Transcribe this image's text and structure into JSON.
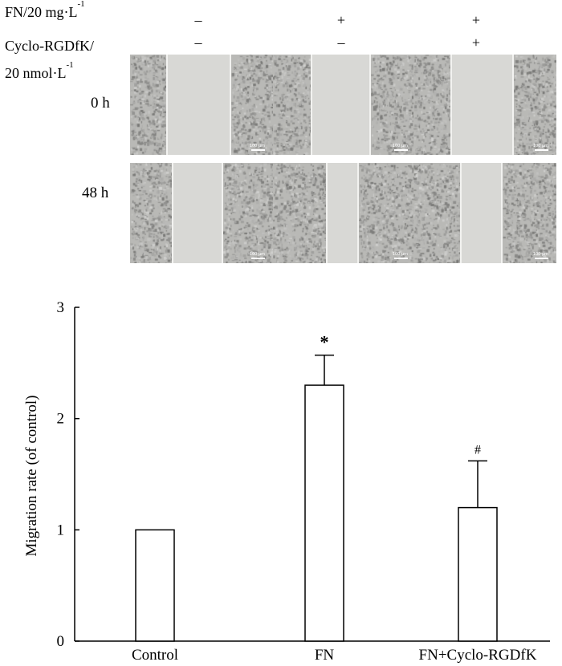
{
  "header": {
    "fn_label": "FN/20 mg·L",
    "fn_exp": "-1",
    "rgd_label_line1": "Cyclo-RGDfK/",
    "rgd_label_line2": "20 nmol·L",
    "rgd_exp": "-1",
    "fn_signs": [
      "–",
      "+",
      "+"
    ],
    "rgd_signs": [
      "–",
      "–",
      "+"
    ]
  },
  "times": [
    "0 h",
    "48 h"
  ],
  "scale_label": "100 μm",
  "chart_data": {
    "type": "bar",
    "categories": [
      "Control",
      "FN",
      "FN+Cyclo-RGDfK"
    ],
    "values": [
      1.0,
      2.3,
      1.2
    ],
    "errors": [
      0,
      0.27,
      0.42
    ],
    "annotations": [
      "",
      "*",
      "#"
    ],
    "title": "",
    "xlabel": "",
    "ylabel": "Migration rate (of control)",
    "ylim": [
      0,
      3
    ],
    "yticks": [
      0,
      1,
      2,
      3
    ],
    "grid": false,
    "bar_fill": "#ffffff",
    "bar_stroke": "#000000"
  }
}
